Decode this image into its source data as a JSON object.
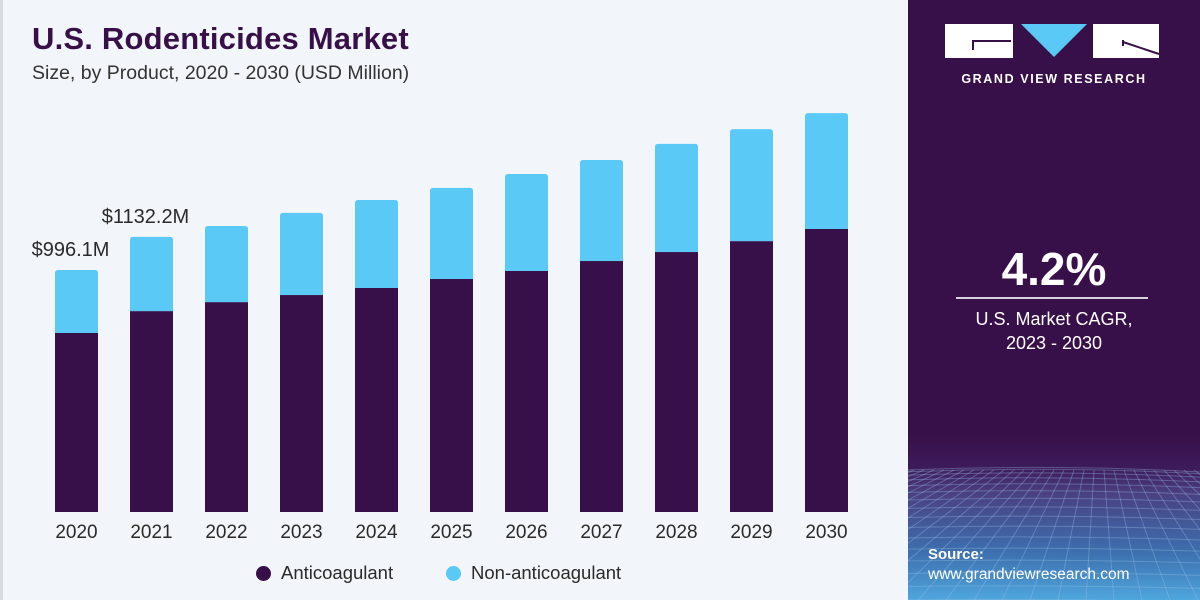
{
  "header": {
    "title": "U.S. Rodenticides Market",
    "subtitle": "Size, by Product, 2020 - 2030 (USD Million)"
  },
  "chart_data": {
    "type": "bar",
    "stacked": true,
    "title": "U.S. Rodenticides Market",
    "subtitle": "Size, by Product, 2020 - 2030 (USD Million)",
    "xlabel": "",
    "ylabel": "USD Million",
    "categories": [
      "2020",
      "2021",
      "2022",
      "2023",
      "2024",
      "2025",
      "2026",
      "2027",
      "2028",
      "2029",
      "2030"
    ],
    "series": [
      {
        "name": "Anticoagulant",
        "color": "#381049",
        "values": [
          737,
          827,
          864,
          893,
          922,
          959,
          992,
          1033,
          1070,
          1115,
          1165
        ]
      },
      {
        "name": "Non-anticoagulant",
        "color": "#5bc9f5",
        "values": [
          259.1,
          305.2,
          313,
          338,
          362,
          375,
          399,
          416,
          445,
          461,
          477
        ]
      }
    ],
    "annotations": [
      {
        "category": "2020",
        "text": "$996.1M",
        "value": 996.1
      },
      {
        "category": "2021",
        "text": "$1132.2M",
        "value": 1132.2
      }
    ],
    "ylim": [
      0,
      1700
    ],
    "grid": false,
    "legend_position": "bottom-center"
  },
  "panel": {
    "logo_text": "GRAND VIEW RESEARCH",
    "cagr_value": "4.2%",
    "cagr_label_line1": "U.S. Market CAGR,",
    "cagr_label_line2": "2023 - 2030",
    "source_label": "Source:",
    "source_url": "www.grandviewresearch.com",
    "colors": {
      "background": "#381049",
      "accent": "#5bc9f5"
    }
  }
}
